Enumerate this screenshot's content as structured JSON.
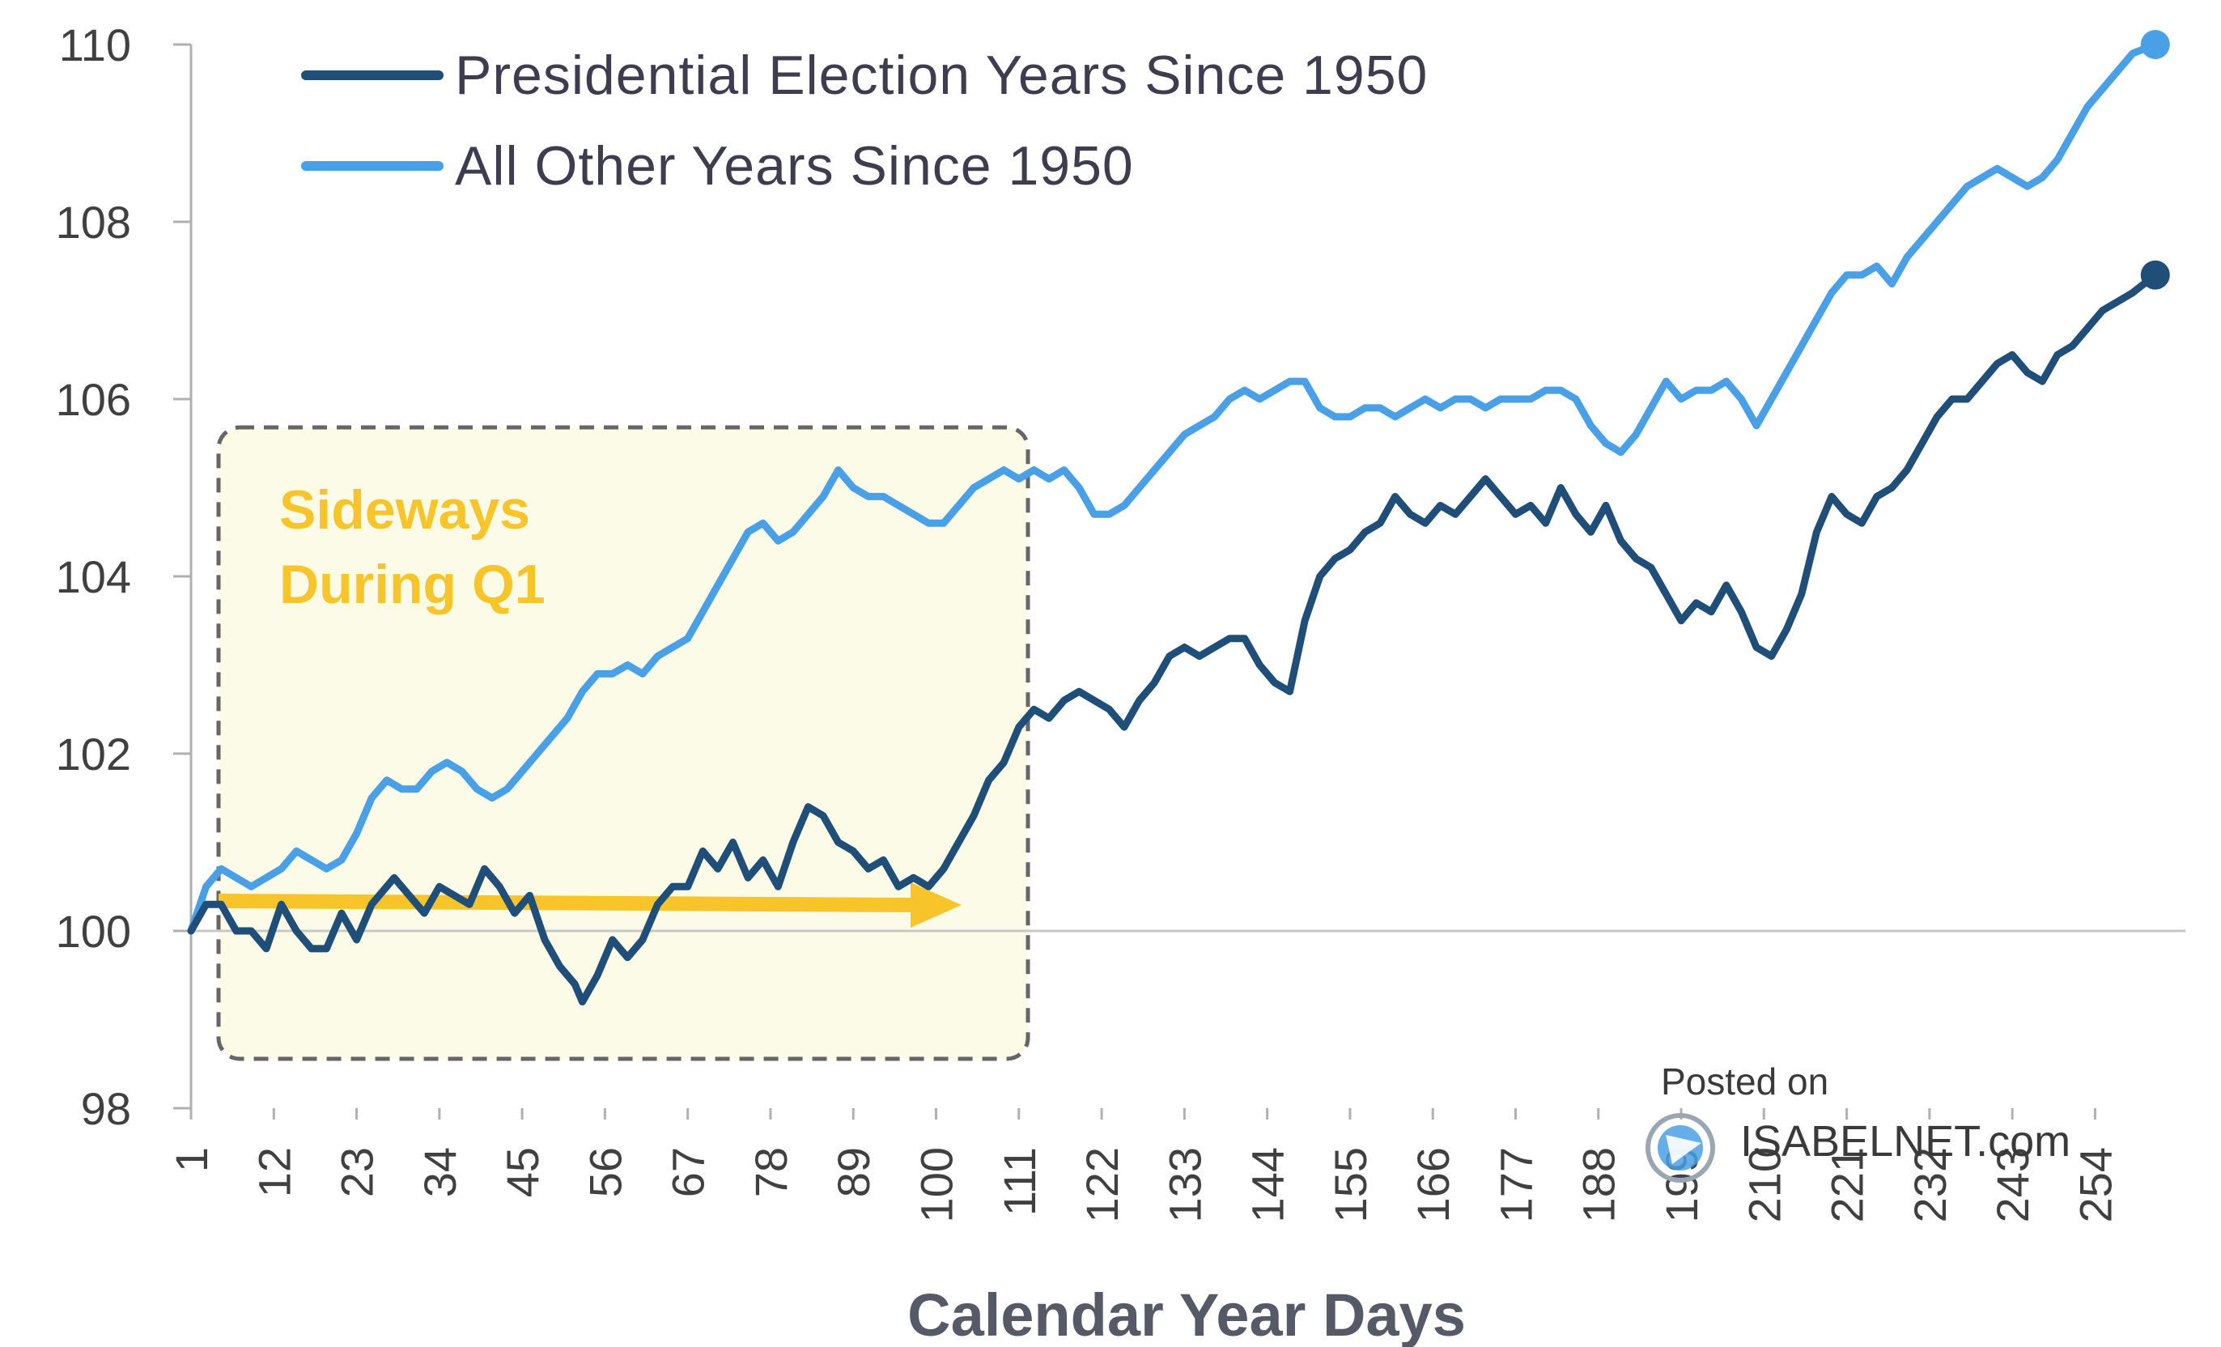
{
  "colors": {
    "election": "#1f4e79",
    "other": "#4aa0e6",
    "annotation": "#f7c52a",
    "box_fill": "#fbfbe8",
    "box_border": "#666666",
    "axis": "#b0b0b0"
  },
  "annotation": {
    "line1": "Sideways",
    "line2": "During Q1"
  },
  "watermark": {
    "line1": "Posted on",
    "line2": "ISABELNET.com",
    "icon": "isabelnet-logo-icon"
  },
  "chart_data": {
    "type": "line",
    "xlabel": "Calendar Year Days",
    "ylabel": "",
    "ylim": [
      98,
      110
    ],
    "xlim": [
      1,
      266
    ],
    "yticks": [
      98,
      100,
      102,
      104,
      106,
      108,
      110
    ],
    "xticks": [
      1,
      12,
      23,
      34,
      45,
      56,
      67,
      78,
      89,
      100,
      111,
      122,
      133,
      144,
      155,
      166,
      177,
      188,
      199,
      210,
      221,
      232,
      243,
      254
    ],
    "legend_position": "top-left",
    "grid": false,
    "reference_line": 100,
    "series": [
      {
        "name": "Presidential Election Years Since 1950",
        "key": "election",
        "points": [
          [
            1,
            100
          ],
          [
            3,
            100.3
          ],
          [
            5,
            100.3
          ],
          [
            7,
            100
          ],
          [
            9,
            100
          ],
          [
            11,
            99.8
          ],
          [
            13,
            100.3
          ],
          [
            15,
            100
          ],
          [
            17,
            99.8
          ],
          [
            19,
            99.8
          ],
          [
            21,
            100.2
          ],
          [
            23,
            99.9
          ],
          [
            25,
            100.3
          ],
          [
            28,
            100.6
          ],
          [
            30,
            100.4
          ],
          [
            32,
            100.2
          ],
          [
            34,
            100.5
          ],
          [
            36,
            100.4
          ],
          [
            38,
            100.3
          ],
          [
            40,
            100.7
          ],
          [
            42,
            100.5
          ],
          [
            44,
            100.2
          ],
          [
            46,
            100.4
          ],
          [
            48,
            99.9
          ],
          [
            50,
            99.6
          ],
          [
            52,
            99.4
          ],
          [
            53,
            99.2
          ],
          [
            55,
            99.5
          ],
          [
            57,
            99.9
          ],
          [
            59,
            99.7
          ],
          [
            61,
            99.9
          ],
          [
            63,
            100.3
          ],
          [
            65,
            100.5
          ],
          [
            67,
            100.5
          ],
          [
            69,
            100.9
          ],
          [
            71,
            100.7
          ],
          [
            73,
            101
          ],
          [
            75,
            100.6
          ],
          [
            77,
            100.8
          ],
          [
            79,
            100.5
          ],
          [
            81,
            101
          ],
          [
            83,
            101.4
          ],
          [
            85,
            101.3
          ],
          [
            87,
            101
          ],
          [
            89,
            100.9
          ],
          [
            91,
            100.7
          ],
          [
            93,
            100.8
          ],
          [
            95,
            100.5
          ],
          [
            97,
            100.6
          ],
          [
            99,
            100.5
          ],
          [
            101,
            100.7
          ],
          [
            103,
            101
          ],
          [
            105,
            101.3
          ],
          [
            107,
            101.7
          ],
          [
            109,
            101.9
          ],
          [
            111,
            102.3
          ],
          [
            113,
            102.5
          ],
          [
            115,
            102.4
          ],
          [
            117,
            102.6
          ],
          [
            119,
            102.7
          ],
          [
            121,
            102.6
          ],
          [
            123,
            102.5
          ],
          [
            125,
            102.3
          ],
          [
            127,
            102.6
          ],
          [
            129,
            102.8
          ],
          [
            131,
            103.1
          ],
          [
            133,
            103.2
          ],
          [
            135,
            103.1
          ],
          [
            137,
            103.2
          ],
          [
            139,
            103.3
          ],
          [
            141,
            103.3
          ],
          [
            143,
            103
          ],
          [
            145,
            102.8
          ],
          [
            147,
            102.7
          ],
          [
            149,
            103.5
          ],
          [
            151,
            104
          ],
          [
            153,
            104.2
          ],
          [
            155,
            104.3
          ],
          [
            157,
            104.5
          ],
          [
            159,
            104.6
          ],
          [
            161,
            104.9
          ],
          [
            163,
            104.7
          ],
          [
            165,
            104.6
          ],
          [
            167,
            104.8
          ],
          [
            169,
            104.7
          ],
          [
            171,
            104.9
          ],
          [
            173,
            105.1
          ],
          [
            175,
            104.9
          ],
          [
            177,
            104.7
          ],
          [
            179,
            104.8
          ],
          [
            181,
            104.6
          ],
          [
            183,
            105
          ],
          [
            185,
            104.7
          ],
          [
            187,
            104.5
          ],
          [
            189,
            104.8
          ],
          [
            191,
            104.4
          ],
          [
            193,
            104.2
          ],
          [
            195,
            104.1
          ],
          [
            197,
            103.8
          ],
          [
            199,
            103.5
          ],
          [
            201,
            103.7
          ],
          [
            203,
            103.6
          ],
          [
            205,
            103.9
          ],
          [
            207,
            103.6
          ],
          [
            209,
            103.2
          ],
          [
            211,
            103.1
          ],
          [
            213,
            103.4
          ],
          [
            215,
            103.8
          ],
          [
            217,
            104.5
          ],
          [
            219,
            104.9
          ],
          [
            221,
            104.7
          ],
          [
            223,
            104.6
          ],
          [
            225,
            104.9
          ],
          [
            227,
            105
          ],
          [
            229,
            105.2
          ],
          [
            231,
            105.5
          ],
          [
            233,
            105.8
          ],
          [
            235,
            106
          ],
          [
            237,
            106
          ],
          [
            239,
            106.2
          ],
          [
            241,
            106.4
          ],
          [
            243,
            106.5
          ],
          [
            245,
            106.3
          ],
          [
            247,
            106.2
          ],
          [
            249,
            106.5
          ],
          [
            251,
            106.6
          ],
          [
            253,
            106.8
          ],
          [
            255,
            107
          ],
          [
            257,
            107.1
          ],
          [
            259,
            107.2
          ],
          [
            262,
            107.4
          ]
        ]
      },
      {
        "name": "All Other Years Since 1950",
        "key": "other",
        "points": [
          [
            1,
            100
          ],
          [
            3,
            100.5
          ],
          [
            5,
            100.7
          ],
          [
            7,
            100.6
          ],
          [
            9,
            100.5
          ],
          [
            11,
            100.6
          ],
          [
            13,
            100.7
          ],
          [
            15,
            100.9
          ],
          [
            17,
            100.8
          ],
          [
            19,
            100.7
          ],
          [
            21,
            100.8
          ],
          [
            23,
            101.1
          ],
          [
            25,
            101.5
          ],
          [
            27,
            101.7
          ],
          [
            29,
            101.6
          ],
          [
            31,
            101.6
          ],
          [
            33,
            101.8
          ],
          [
            35,
            101.9
          ],
          [
            37,
            101.8
          ],
          [
            39,
            101.6
          ],
          [
            41,
            101.5
          ],
          [
            43,
            101.6
          ],
          [
            45,
            101.8
          ],
          [
            47,
            102
          ],
          [
            49,
            102.2
          ],
          [
            51,
            102.4
          ],
          [
            53,
            102.7
          ],
          [
            55,
            102.9
          ],
          [
            57,
            102.9
          ],
          [
            59,
            103
          ],
          [
            61,
            102.9
          ],
          [
            63,
            103.1
          ],
          [
            65,
            103.2
          ],
          [
            67,
            103.3
          ],
          [
            69,
            103.6
          ],
          [
            71,
            103.9
          ],
          [
            73,
            104.2
          ],
          [
            75,
            104.5
          ],
          [
            77,
            104.6
          ],
          [
            79,
            104.4
          ],
          [
            81,
            104.5
          ],
          [
            83,
            104.7
          ],
          [
            85,
            104.9
          ],
          [
            87,
            105.2
          ],
          [
            89,
            105
          ],
          [
            91,
            104.9
          ],
          [
            93,
            104.9
          ],
          [
            95,
            104.8
          ],
          [
            97,
            104.7
          ],
          [
            99,
            104.6
          ],
          [
            101,
            104.6
          ],
          [
            103,
            104.8
          ],
          [
            105,
            105
          ],
          [
            107,
            105.1
          ],
          [
            109,
            105.2
          ],
          [
            111,
            105.1
          ],
          [
            113,
            105.2
          ],
          [
            115,
            105.1
          ],
          [
            117,
            105.2
          ],
          [
            119,
            105
          ],
          [
            121,
            104.7
          ],
          [
            123,
            104.7
          ],
          [
            125,
            104.8
          ],
          [
            127,
            105
          ],
          [
            129,
            105.2
          ],
          [
            131,
            105.4
          ],
          [
            133,
            105.6
          ],
          [
            135,
            105.7
          ],
          [
            137,
            105.8
          ],
          [
            139,
            106
          ],
          [
            141,
            106.1
          ],
          [
            143,
            106
          ],
          [
            145,
            106.1
          ],
          [
            147,
            106.2
          ],
          [
            149,
            106.2
          ],
          [
            151,
            105.9
          ],
          [
            153,
            105.8
          ],
          [
            155,
            105.8
          ],
          [
            157,
            105.9
          ],
          [
            159,
            105.9
          ],
          [
            161,
            105.8
          ],
          [
            163,
            105.9
          ],
          [
            165,
            106
          ],
          [
            167,
            105.9
          ],
          [
            169,
            106
          ],
          [
            171,
            106
          ],
          [
            173,
            105.9
          ],
          [
            175,
            106
          ],
          [
            177,
            106
          ],
          [
            179,
            106
          ],
          [
            181,
            106.1
          ],
          [
            183,
            106.1
          ],
          [
            185,
            106
          ],
          [
            187,
            105.7
          ],
          [
            189,
            105.5
          ],
          [
            191,
            105.4
          ],
          [
            193,
            105.6
          ],
          [
            195,
            105.9
          ],
          [
            197,
            106.2
          ],
          [
            199,
            106
          ],
          [
            201,
            106.1
          ],
          [
            203,
            106.1
          ],
          [
            205,
            106.2
          ],
          [
            207,
            106
          ],
          [
            209,
            105.7
          ],
          [
            211,
            106
          ],
          [
            213,
            106.3
          ],
          [
            215,
            106.6
          ],
          [
            217,
            106.9
          ],
          [
            219,
            107.2
          ],
          [
            221,
            107.4
          ],
          [
            223,
            107.4
          ],
          [
            225,
            107.5
          ],
          [
            227,
            107.3
          ],
          [
            229,
            107.6
          ],
          [
            231,
            107.8
          ],
          [
            233,
            108
          ],
          [
            235,
            108.2
          ],
          [
            237,
            108.4
          ],
          [
            239,
            108.5
          ],
          [
            241,
            108.6
          ],
          [
            243,
            108.5
          ],
          [
            245,
            108.4
          ],
          [
            247,
            108.5
          ],
          [
            249,
            108.7
          ],
          [
            251,
            109
          ],
          [
            253,
            109.3
          ],
          [
            255,
            109.5
          ],
          [
            257,
            109.7
          ],
          [
            259,
            109.9
          ],
          [
            262,
            110
          ]
        ]
      }
    ]
  }
}
